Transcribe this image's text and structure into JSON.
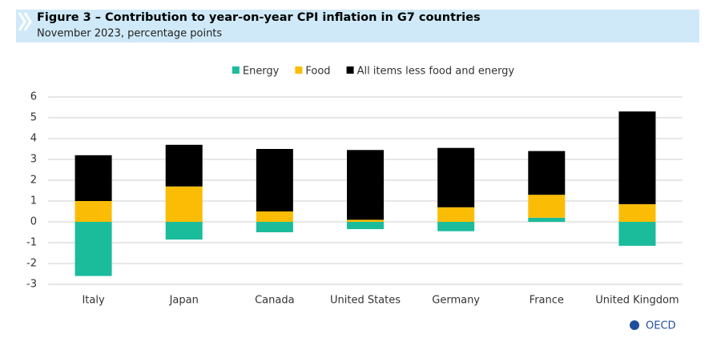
{
  "chart_data": {
    "type": "stacked-bar",
    "title": "Figure 3 – Contribution to year-on-year CPI inflation in G7 countries",
    "subtitle": "November 2023, percentage points",
    "source": "OECD",
    "categories": [
      "Italy",
      "Japan",
      "Canada",
      "United States",
      "Germany",
      "France",
      "United Kingdom"
    ],
    "series": [
      {
        "name": "Energy",
        "color": "#1abc9c",
        "values": [
          -2.6,
          -0.85,
          -0.5,
          -0.35,
          -0.45,
          0.2,
          -1.15
        ]
      },
      {
        "name": "Food",
        "color": "#fbbc05",
        "values": [
          1.0,
          1.7,
          0.5,
          0.1,
          0.7,
          1.1,
          0.85
        ]
      },
      {
        "name": "All items less food and energy",
        "color": "#000000",
        "values": [
          2.2,
          2.0,
          3.0,
          3.35,
          2.85,
          2.1,
          4.45
        ]
      }
    ],
    "ylim": [
      -3,
      6
    ],
    "yticks": [
      6,
      5,
      4,
      3,
      2,
      1,
      0,
      -1,
      -2,
      -3
    ],
    "grid": true,
    "legend": "top"
  }
}
